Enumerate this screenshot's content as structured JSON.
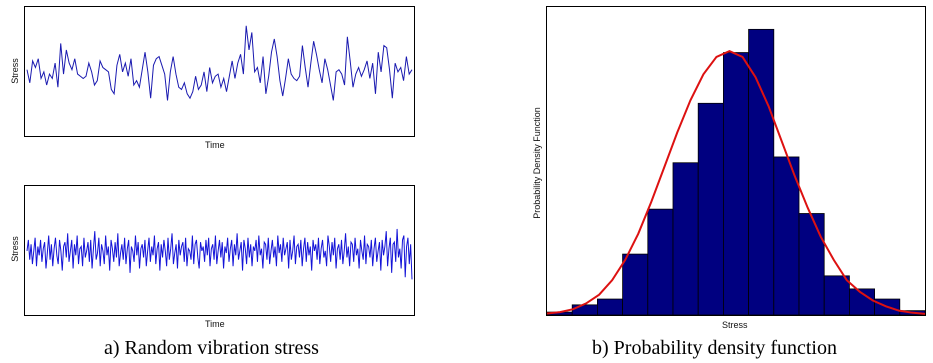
{
  "chart_data": [
    {
      "type": "line",
      "title": "",
      "xlabel": "Time",
      "ylabel": "Stress",
      "series": [
        {
          "color": "#1a1ab0",
          "values": [
            0.1,
            -0.2,
            0.3,
            0.15,
            0.35,
            -0.1,
            0.05,
            -0.25,
            0.0,
            -0.1,
            0.25,
            -0.3,
            0.7,
            0.0,
            0.55,
            0.25,
            0.1,
            0.35,
            0.0,
            -0.05,
            -0.1,
            -0.05,
            0.25,
            0.05,
            -0.25,
            -0.15,
            0.3,
            0.15,
            0.1,
            0.05,
            -0.35,
            -0.45,
            0.2,
            0.45,
            0.05,
            0.25,
            -0.05,
            0.35,
            -0.25,
            -0.15,
            -0.3,
            0.1,
            0.5,
            0.05,
            -0.55,
            0.2,
            0.35,
            0.4,
            0.2,
            0.0,
            -0.6,
            0.05,
            0.4,
            0.0,
            -0.3,
            -0.35,
            -0.2,
            -0.45,
            -0.55,
            -0.4,
            -0.05,
            -0.35,
            -0.25,
            0.05,
            -0.4,
            0.15,
            -0.2,
            -0.05,
            0.0,
            -0.3,
            -0.1,
            -0.4,
            -0.05,
            0.3,
            -0.1,
            0.25,
            0.45,
            0.0,
            1.1,
            0.55,
            0.95,
            0.05,
            0.15,
            -0.2,
            0.4,
            -0.45,
            -0.05,
            0.5,
            0.8,
            0.4,
            -0.15,
            -0.5,
            -0.1,
            0.35,
            0.0,
            -0.1,
            -0.15,
            -0.05,
            0.65,
            0.15,
            -0.3,
            0.25,
            0.75,
            0.45,
            0.1,
            -0.2,
            0.35,
            0.1,
            -0.25,
            -0.6,
            0.05,
            0.1,
            0.0,
            -0.25,
            0.85,
            0.3,
            -0.3,
            0.0,
            0.15,
            -0.05,
            0.1,
            0.3,
            -0.1,
            0.25,
            -0.45,
            0.5,
            0.05,
            0.65,
            0.6,
            0.1,
            -0.55,
            0.25,
            0.05,
            0.15,
            -0.15,
            0.4,
            0.0,
            0.1
          ]
        }
      ]
    },
    {
      "type": "line",
      "title": "",
      "xlabel": "Time",
      "ylabel": "Stress",
      "series": [
        {
          "color": "#1414d8",
          "values": [
            0.05,
            0.3,
            -0.15,
            0.2,
            -0.25,
            0.05,
            0.35,
            -0.3,
            0.15,
            -0.05,
            0.3,
            -0.2,
            0.1,
            0.25,
            -0.35,
            0.0,
            0.4,
            -0.15,
            0.2,
            -0.3,
            0.1,
            0.35,
            -0.05,
            -0.25,
            0.3,
            0.05,
            -0.4,
            0.15,
            0.25,
            -0.1,
            0.45,
            -0.2,
            0.05,
            0.3,
            -0.35,
            0.2,
            -0.05,
            0.4,
            -0.25,
            0.1,
            0.15,
            -0.3,
            0.35,
            -0.1,
            0.05,
            0.25,
            -0.2,
            0.3,
            -0.35,
            0.1,
            0.5,
            -0.15,
            0.0,
            0.35,
            -0.3,
            0.2,
            0.05,
            -0.25,
            0.4,
            -0.05,
            0.15,
            -0.4,
            0.3,
            0.1,
            -0.2,
            0.25,
            -0.1,
            0.45,
            -0.3,
            0.0,
            0.2,
            -0.15,
            0.35,
            -0.25,
            0.1,
            0.3,
            -0.45,
            0.15,
            0.05,
            -0.2,
            0.4,
            -0.05,
            0.25,
            -0.35,
            0.1,
            0.2,
            -0.1,
            0.3,
            -0.3,
            0.05,
            0.35,
            -0.2,
            0.15,
            -0.05,
            0.4,
            -0.25,
            0.1,
            0.25,
            -0.4,
            0.2,
            -0.1,
            0.3,
            0.05,
            -0.3,
            0.35,
            -0.15,
            0.1,
            0.45,
            -0.25,
            0.0,
            0.2,
            -0.35,
            0.3,
            -0.05,
            0.15,
            0.25,
            -0.2,
            0.35,
            -0.3,
            0.1,
            0.05,
            -0.15,
            0.4,
            -0.25,
            0.2,
            0.3,
            -0.1,
            -0.35,
            0.25,
            0.05,
            0.15,
            -0.2,
            0.3,
            -0.05,
            0.35,
            -0.3,
            0.1,
            0.2,
            -0.15,
            0.4,
            -0.25,
            0.05,
            0.3,
            -0.1,
            0.25,
            -0.35,
            0.15,
            0.0,
            0.35,
            -0.2,
            0.1,
            0.3,
            -0.3,
            0.2,
            -0.05,
            0.45,
            -0.15,
            0.05,
            0.25,
            -0.4,
            0.3,
            0.1,
            -0.25,
            0.35,
            -0.1,
            0.2,
            -0.3,
            0.15,
            0.05,
            0.3,
            -0.2,
            0.4,
            -0.05,
            0.1,
            -0.35,
            0.25,
            0.2,
            -0.15,
            0.35,
            -0.25,
            0.05,
            0.3,
            -0.1,
            0.15,
            -0.3,
            0.4,
            0.0,
            0.2,
            -0.2,
            0.35,
            -0.05,
            0.1,
            0.25,
            -0.35,
            0.3,
            -0.15,
            0.05,
            0.4,
            -0.25,
            0.15,
            0.2,
            -0.1,
            0.3,
            -0.3,
            0.1,
            0.35,
            -0.2,
            0.25,
            -0.05,
            0.15,
            -0.4,
            0.3,
            0.05,
            0.2,
            -0.15,
            0.35,
            -0.25,
            0.1,
            0.3,
            -0.1,
            0.05,
            -0.3,
            0.4,
            0.15,
            -0.2,
            0.25,
            -0.05,
            0.35,
            -0.35,
            0.1,
            0.2,
            -0.15,
            0.3,
            -0.25,
            0.05,
            0.45,
            -0.1,
            0.15,
            -0.3,
            0.25,
            0.2,
            -0.2,
            0.35,
            -0.05,
            0.1,
            -0.35,
            0.3,
            0.05,
            -0.15,
            0.4,
            -0.25,
            0.2,
            0.15,
            -0.1,
            0.3,
            -0.3,
            0.1,
            0.35,
            -0.2,
            0.05,
            0.25,
            -0.4,
            0.3,
            -0.05,
            0.15,
            0.5,
            -0.3,
            0.1,
            0.35,
            -0.45,
            0.2,
            0.25,
            -0.2,
            0.55,
            -0.1,
            0.1,
            -0.35,
            0.3,
            0.4,
            -0.55,
            0.15,
            0.35,
            -0.25,
            0.2,
            -0.6
          ]
        }
      ]
    },
    {
      "type": "bar",
      "title": "",
      "xlabel": "Stress",
      "ylabel": "Probability Density Function",
      "bar_color": "#000080",
      "curve_color": "#dd1111",
      "values": [
        0.01,
        0.035,
        0.055,
        0.21,
        0.365,
        0.525,
        0.73,
        0.905,
        0.985,
        0.545,
        0.35,
        0.135,
        0.09,
        0.055,
        0.015
      ],
      "curve": [
        0.005,
        0.01,
        0.02,
        0.04,
        0.07,
        0.12,
        0.19,
        0.28,
        0.39,
        0.51,
        0.63,
        0.74,
        0.83,
        0.89,
        0.91,
        0.89,
        0.82,
        0.72,
        0.6,
        0.48,
        0.37,
        0.27,
        0.19,
        0.12,
        0.08,
        0.05,
        0.03,
        0.015,
        0.008,
        0.004
      ]
    }
  ],
  "captions": {
    "left": "a) Random vibration stress",
    "right": "b) Probability density function"
  }
}
